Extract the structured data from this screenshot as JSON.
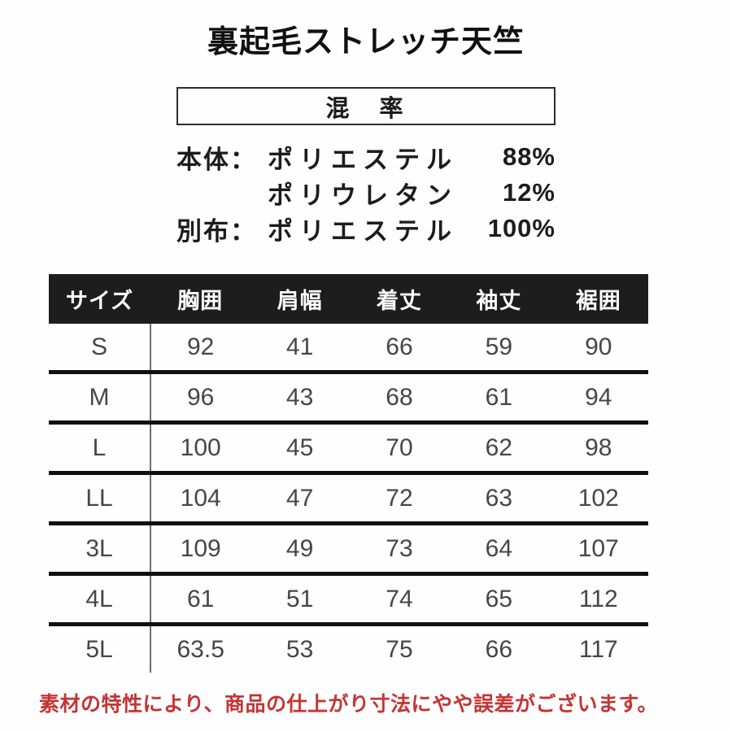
{
  "title": "裏起毛ストレッチ天竺",
  "composition": {
    "box_label": "混　率",
    "rows": [
      {
        "label": "本体：",
        "material": "ポリエステル",
        "percent": "88%"
      },
      {
        "label": "",
        "material": "ポリウレタン",
        "percent": "12%"
      },
      {
        "label": "別布：",
        "material": "ポリエステル",
        "percent": "100%"
      }
    ]
  },
  "size_table": {
    "headers": [
      "サイズ",
      "胸囲",
      "肩幅",
      "着丈",
      "袖丈",
      "裾囲"
    ],
    "rows": [
      {
        "size": "S",
        "values": [
          "92",
          "41",
          "66",
          "59",
          "90"
        ]
      },
      {
        "size": "M",
        "values": [
          "96",
          "43",
          "68",
          "61",
          "94"
        ]
      },
      {
        "size": "L",
        "values": [
          "100",
          "45",
          "70",
          "62",
          "98"
        ]
      },
      {
        "size": "LL",
        "values": [
          "104",
          "47",
          "72",
          "63",
          "102"
        ]
      },
      {
        "size": "3L",
        "values": [
          "109",
          "49",
          "73",
          "64",
          "107"
        ]
      },
      {
        "size": "4L",
        "values": [
          "61",
          "51",
          "74",
          "65",
          "112"
        ]
      },
      {
        "size": "5L",
        "values": [
          "63.5",
          "53",
          "75",
          "66",
          "117"
        ]
      }
    ]
  },
  "note": "素材の特性により、商品の仕上がり寸法にやや誤差がございます。",
  "colors": {
    "header_bg": "#1d1d1d",
    "header_text": "#ffffff",
    "body_text": "#464646",
    "row_divider": "#101010",
    "note_red": "#c53434"
  }
}
